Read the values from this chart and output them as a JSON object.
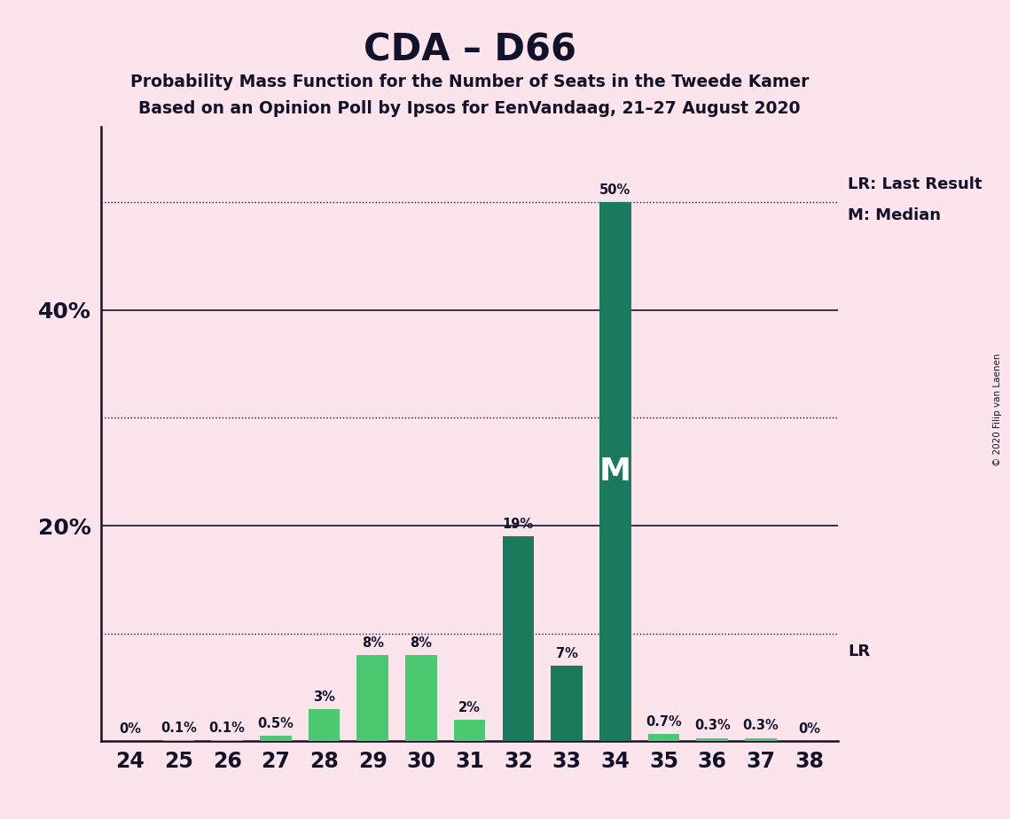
{
  "title": "CDA – D66",
  "subtitle1": "Probability Mass Function for the Number of Seats in the Tweede Kamer",
  "subtitle2": "Based on an Opinion Poll by Ipsos for EenVandaag, 21–27 August 2020",
  "copyright": "© 2020 Filip van Laenen",
  "seats": [
    24,
    25,
    26,
    27,
    28,
    29,
    30,
    31,
    32,
    33,
    34,
    35,
    36,
    37,
    38
  ],
  "values": [
    0.0,
    0.1,
    0.1,
    0.5,
    3.0,
    8.0,
    8.0,
    2.0,
    19.0,
    7.0,
    50.0,
    0.7,
    0.3,
    0.3,
    0.0
  ],
  "labels": [
    "0%",
    "0.1%",
    "0.1%",
    "0.5%",
    "3%",
    "8%",
    "8%",
    "2%",
    "19%",
    "7%",
    "50%",
    "0.7%",
    "0.3%",
    "0.3%",
    "0%"
  ],
  "dark_seats": [
    32,
    33,
    34
  ],
  "dark_color": "#1a7a5e",
  "light_color": "#4bc870",
  "median_seat": 34,
  "lr_seat": 34,
  "lr_label": "LR",
  "lr_legend": "LR: Last Result",
  "m_legend": "M: Median",
  "background_color": "#fce4ec",
  "ylim_max": 57,
  "bar_width": 0.65,
  "solid_lines": [
    20,
    40
  ],
  "dotted_lines": [
    10,
    30,
    50
  ],
  "ytick_positions": [
    0,
    20,
    40
  ],
  "ytick_labels": [
    "",
    "20%",
    "40%"
  ],
  "text_color": "#12122a"
}
